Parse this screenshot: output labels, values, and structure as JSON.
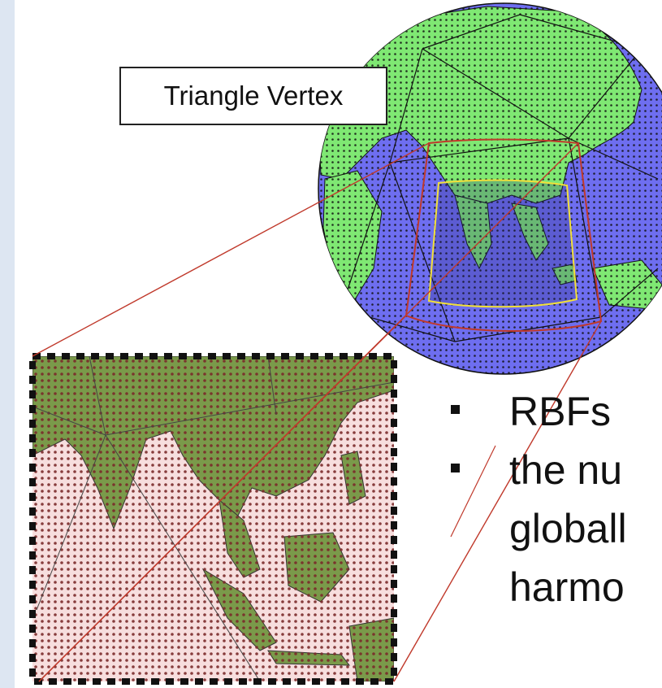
{
  "callout": {
    "label": "Triangle Vertex"
  },
  "bullets": [
    {
      "text": "RBFs"
    },
    {
      "text": "the nu"
    }
  ],
  "continuation_lines": [
    {
      "text": "globall"
    },
    {
      "text": "harmo"
    }
  ],
  "colors": {
    "ocean": "#6e6ef0",
    "land": "#7fe873",
    "inset_land": "#7a9a4a",
    "inset_ocean": "#f7dede",
    "highlight_red": "#c0392b",
    "highlight_yellow": "#f2e03a",
    "node_dots": "#111111"
  },
  "icons": {
    "globe": "globe-icon",
    "zoom_inset": "zoomed-map-icon"
  }
}
